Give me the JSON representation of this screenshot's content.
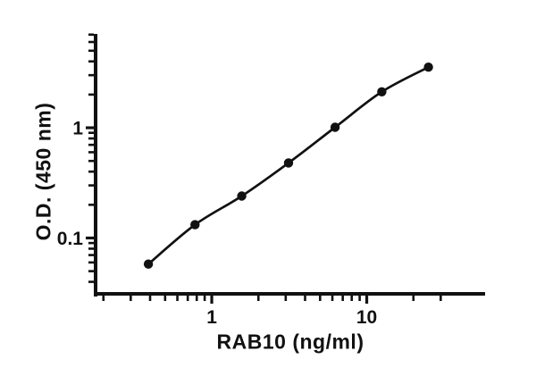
{
  "figure": {
    "background": "#ffffff",
    "ink_color": "#111111"
  },
  "chart_data": {
    "type": "scatter",
    "title": "",
    "xlabel": "RAB10 (ng/ml)",
    "ylabel": "O.D. (450 nm)",
    "x_scale": "log",
    "y_scale": "log",
    "grid": false,
    "legend": "none",
    "marker": "filled-circle",
    "line": "smooth-fit",
    "x": [
      0.39,
      0.78,
      1.56,
      3.13,
      6.25,
      12.5,
      25
    ],
    "y": [
      0.058,
      0.132,
      0.24,
      0.48,
      1.01,
      2.12,
      3.55
    ],
    "xlim": [
      0.178,
      58
    ],
    "ylim": [
      0.03,
      7.1
    ],
    "x_major_ticks": [
      {
        "value": 1,
        "label": "1"
      },
      {
        "value": 10,
        "label": "10"
      }
    ],
    "x_minor_ticks": [
      0.2,
      0.3,
      0.4,
      0.5,
      0.6,
      0.7,
      0.8,
      0.9,
      2,
      3,
      4,
      5,
      6,
      7,
      8,
      9,
      20,
      30
    ],
    "y_major_ticks": [
      {
        "value": 0.1,
        "label": "0.1"
      },
      {
        "value": 1,
        "label": "1"
      }
    ],
    "y_minor_ticks": [
      0.04,
      0.05,
      0.06,
      0.07,
      0.08,
      0.09,
      0.2,
      0.3,
      0.4,
      0.5,
      0.6,
      0.7,
      0.8,
      0.9,
      2,
      3,
      4,
      5,
      6,
      7
    ]
  }
}
